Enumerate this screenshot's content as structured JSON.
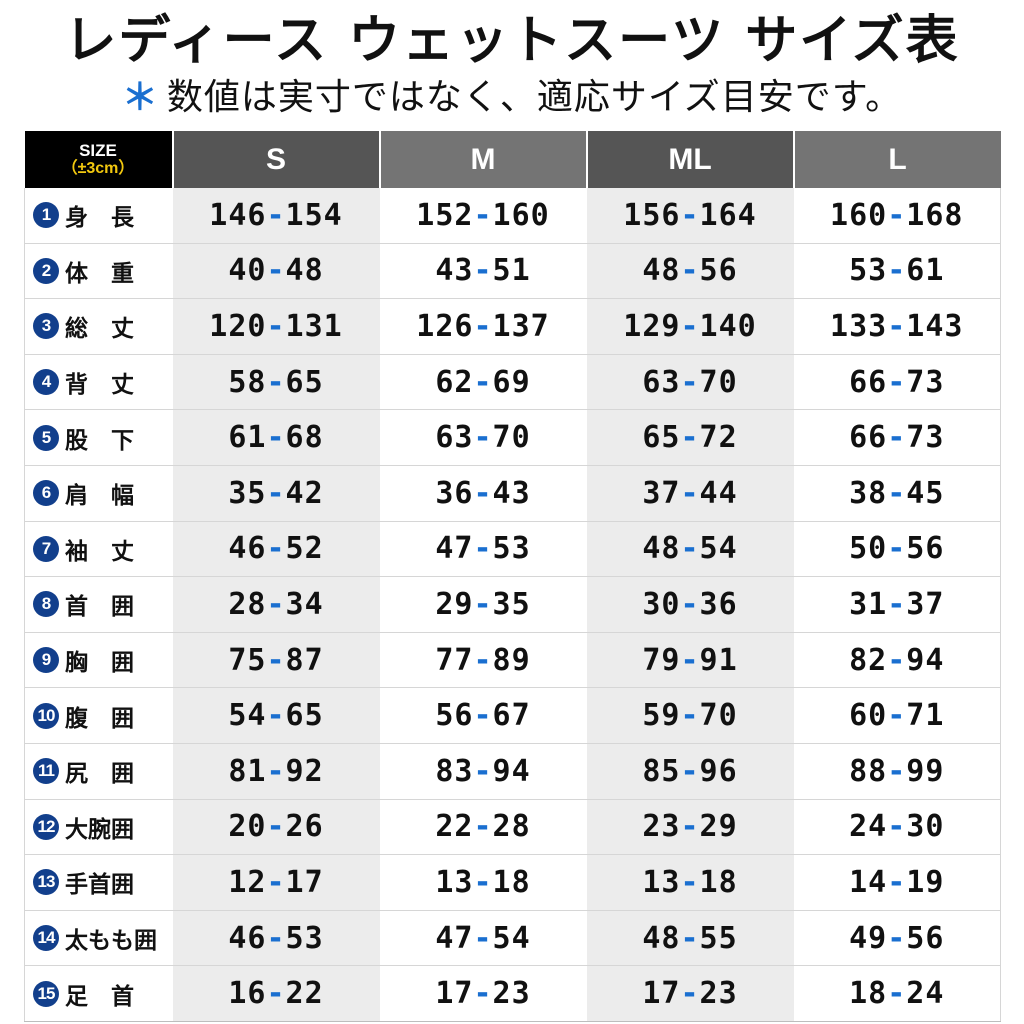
{
  "title": "レディース ウェットスーツ サイズ表",
  "subtitle": {
    "mark": "＊",
    "text": "数値は実寸ではなく、適応サイズ目安です。"
  },
  "header": {
    "size_label": "SIZE",
    "tolerance": "（±3cm）",
    "columns": [
      "S",
      "M",
      "ML",
      "L"
    ]
  },
  "rows": [
    {
      "num": "1",
      "label": "身　長",
      "S": [
        "146",
        "154"
      ],
      "M": [
        "152",
        "160"
      ],
      "ML": [
        "156",
        "164"
      ],
      "L": [
        "160",
        "168"
      ]
    },
    {
      "num": "2",
      "label": "体　重",
      "S": [
        "40",
        "48"
      ],
      "M": [
        "43",
        "51"
      ],
      "ML": [
        "48",
        "56"
      ],
      "L": [
        "53",
        "61"
      ]
    },
    {
      "num": "3",
      "label": "総　丈",
      "S": [
        "120",
        "131"
      ],
      "M": [
        "126",
        "137"
      ],
      "ML": [
        "129",
        "140"
      ],
      "L": [
        "133",
        "143"
      ]
    },
    {
      "num": "4",
      "label": "背　丈",
      "S": [
        "58",
        "65"
      ],
      "M": [
        "62",
        "69"
      ],
      "ML": [
        "63",
        "70"
      ],
      "L": [
        "66",
        "73"
      ]
    },
    {
      "num": "5",
      "label": "股　下",
      "S": [
        "61",
        "68"
      ],
      "M": [
        "63",
        "70"
      ],
      "ML": [
        "65",
        "72"
      ],
      "L": [
        "66",
        "73"
      ]
    },
    {
      "num": "6",
      "label": "肩　幅",
      "S": [
        "35",
        "42"
      ],
      "M": [
        "36",
        "43"
      ],
      "ML": [
        "37",
        "44"
      ],
      "L": [
        "38",
        "45"
      ]
    },
    {
      "num": "7",
      "label": "袖　丈",
      "S": [
        "46",
        "52"
      ],
      "M": [
        "47",
        "53"
      ],
      "ML": [
        "48",
        "54"
      ],
      "L": [
        "50",
        "56"
      ]
    },
    {
      "num": "8",
      "label": "首　囲",
      "S": [
        "28",
        "34"
      ],
      "M": [
        "29",
        "35"
      ],
      "ML": [
        "30",
        "36"
      ],
      "L": [
        "31",
        "37"
      ]
    },
    {
      "num": "9",
      "label": "胸　囲",
      "S": [
        "75",
        "87"
      ],
      "M": [
        "77",
        "89"
      ],
      "ML": [
        "79",
        "91"
      ],
      "L": [
        "82",
        "94"
      ]
    },
    {
      "num": "10",
      "label": "腹　囲",
      "S": [
        "54",
        "65"
      ],
      "M": [
        "56",
        "67"
      ],
      "ML": [
        "59",
        "70"
      ],
      "L": [
        "60",
        "71"
      ]
    },
    {
      "num": "11",
      "label": "尻　囲",
      "S": [
        "81",
        "92"
      ],
      "M": [
        "83",
        "94"
      ],
      "ML": [
        "85",
        "96"
      ],
      "L": [
        "88",
        "99"
      ]
    },
    {
      "num": "12",
      "label": "大腕囲",
      "S": [
        "20",
        "26"
      ],
      "M": [
        "22",
        "28"
      ],
      "ML": [
        "23",
        "29"
      ],
      "L": [
        "24",
        "30"
      ]
    },
    {
      "num": "13",
      "label": "手首囲",
      "S": [
        "12",
        "17"
      ],
      "M": [
        "13",
        "18"
      ],
      "ML": [
        "13",
        "18"
      ],
      "L": [
        "14",
        "19"
      ]
    },
    {
      "num": "14",
      "label": "太もも囲",
      "S": [
        "46",
        "53"
      ],
      "M": [
        "47",
        "54"
      ],
      "ML": [
        "48",
        "55"
      ],
      "L": [
        "49",
        "56"
      ]
    },
    {
      "num": "15",
      "label": "足　首",
      "S": [
        "16",
        "22"
      ],
      "M": [
        "17",
        "23"
      ],
      "ML": [
        "17",
        "23"
      ],
      "L": [
        "18",
        "24"
      ]
    }
  ],
  "colors": {
    "header_dark": "#555555",
    "header_light": "#747474",
    "size_header_bg": "#000000",
    "tolerance_text": "#f2c80f",
    "number_badge": "#123f8c",
    "dash_accent": "#1a6fd0",
    "shaded_column": "#ececec"
  }
}
